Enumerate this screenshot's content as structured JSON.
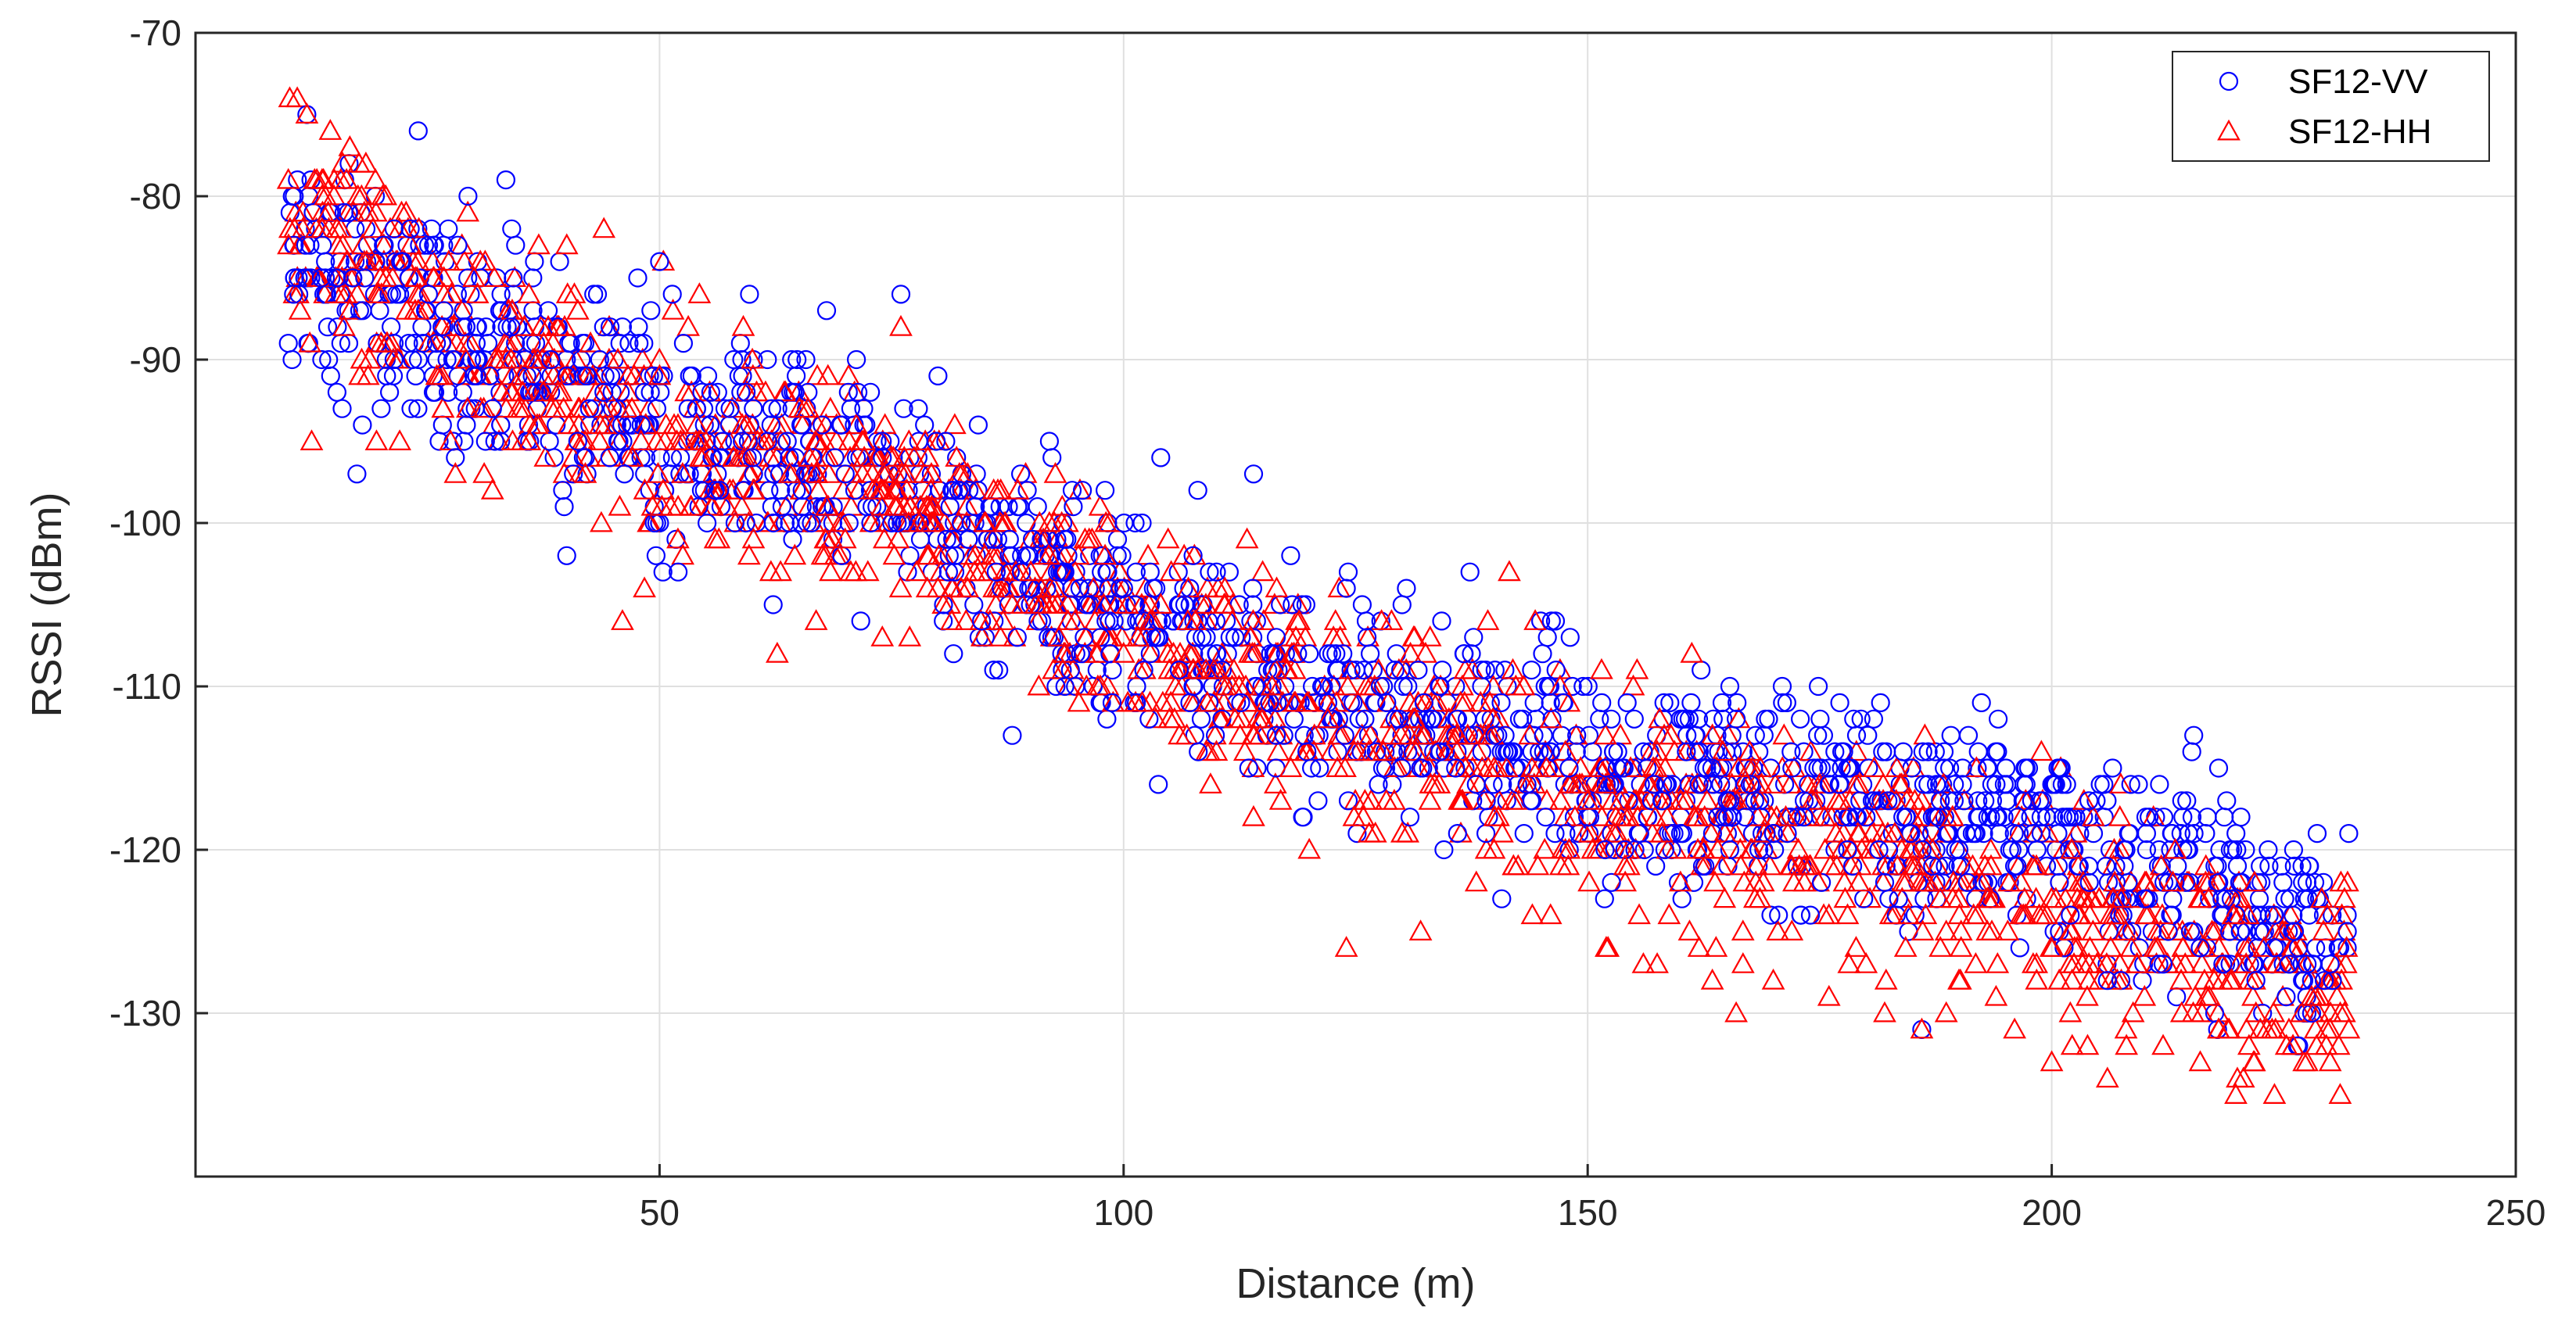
{
  "chart_data": {
    "type": "scatter",
    "xlabel": "Distance (m)",
    "ylabel": "RSSI (dBm)",
    "xlim": [
      0,
      250
    ],
    "ylim": [
      -140,
      -70
    ],
    "xticks": [
      50,
      100,
      150,
      200,
      250
    ],
    "yticks": [
      -70,
      -80,
      -90,
      -100,
      -110,
      -120,
      -130
    ],
    "grid": true,
    "legend_position": "top-right",
    "series": [
      {
        "name": "SF12-VV",
        "marker": "circle",
        "color": "#0000ff",
        "trend": [
          [
            10,
            -83
          ],
          [
            30,
            -89
          ],
          [
            50,
            -94
          ],
          [
            75,
            -98
          ],
          [
            100,
            -106
          ],
          [
            125,
            -111
          ],
          [
            150,
            -115
          ],
          [
            175,
            -117
          ],
          [
            200,
            -119
          ],
          [
            232,
            -126
          ]
        ],
        "x": [
          10,
          12,
          14,
          16,
          18,
          20,
          22,
          24,
          26,
          28,
          30,
          32,
          34,
          36,
          38,
          40,
          42,
          44,
          46,
          48,
          50,
          52,
          54,
          56,
          58,
          60,
          62,
          64,
          66,
          68,
          70,
          72,
          74,
          76,
          78,
          80,
          82,
          84,
          86,
          88,
          90,
          92,
          94,
          96,
          98,
          100,
          102,
          104,
          106,
          108,
          110,
          112,
          114,
          116,
          118,
          120,
          122,
          124,
          126,
          128,
          130,
          132,
          134,
          136,
          138,
          140,
          142,
          144,
          146,
          148,
          150,
          152,
          154,
          156,
          158,
          160,
          162,
          164,
          166,
          168,
          170,
          172,
          174,
          176,
          178,
          180,
          182,
          184,
          186,
          188,
          190,
          192,
          194,
          196,
          198,
          200,
          202,
          204,
          206,
          208,
          210,
          212,
          214,
          216,
          218,
          220,
          222,
          224,
          226,
          228,
          230,
          232
        ],
        "y": [
          -89,
          -75,
          -84,
          -81,
          -87,
          -93,
          -86,
          -76,
          -90,
          -96,
          -91,
          -93,
          -88,
          -95,
          -87,
          -102,
          -96,
          -92,
          -88,
          -94,
          -84,
          -103,
          -93,
          -98,
          -90,
          -96,
          -94,
          -100,
          -92,
          -87,
          -97,
          -93,
          -95,
          -86,
          -100,
          -91,
          -96,
          -99,
          -109,
          -113,
          -104,
          -95,
          -102,
          -105,
          -98,
          -104,
          -100,
          -96,
          -109,
          -98,
          -103,
          -107,
          -97,
          -110,
          -102,
          -108,
          -111,
          -104,
          -112,
          -110,
          -105,
          -115,
          -110,
          -112,
          -116,
          -113,
          -114,
          -117,
          -111,
          -115,
          -118,
          -115,
          -120,
          -114,
          -117,
          -119,
          -116,
          -118,
          -112,
          -117,
          -119,
          -115,
          -124,
          -116,
          -120,
          -118,
          -122,
          -114,
          -131,
          -117,
          -120,
          -118,
          -116,
          -121,
          -119,
          -116,
          -124,
          -117,
          -128,
          -120,
          -123,
          -127,
          -117,
          -126,
          -122,
          -121,
          -128,
          -126,
          -124,
          -130,
          -127,
          -119
        ]
      },
      {
        "name": "SF12-HH",
        "marker": "triangle",
        "color": "#ff0000",
        "trend": [
          [
            10,
            -81
          ],
          [
            30,
            -89
          ],
          [
            50,
            -95
          ],
          [
            75,
            -99
          ],
          [
            100,
            -107
          ],
          [
            125,
            -112
          ],
          [
            150,
            -116
          ],
          [
            175,
            -119
          ],
          [
            200,
            -123
          ],
          [
            232,
            -129
          ]
        ],
        "x": [
          10,
          12,
          14,
          16,
          18,
          20,
          22,
          24,
          26,
          28,
          30,
          32,
          34,
          36,
          38,
          40,
          42,
          44,
          46,
          48,
          50,
          52,
          54,
          56,
          58,
          60,
          62,
          64,
          66,
          68,
          70,
          72,
          74,
          76,
          78,
          80,
          82,
          84,
          86,
          88,
          90,
          92,
          94,
          96,
          98,
          100,
          102,
          104,
          106,
          108,
          110,
          112,
          114,
          116,
          118,
          120,
          122,
          124,
          126,
          128,
          130,
          132,
          134,
          136,
          138,
          140,
          142,
          144,
          146,
          148,
          150,
          152,
          154,
          156,
          158,
          160,
          162,
          164,
          166,
          168,
          170,
          172,
          174,
          176,
          178,
          180,
          182,
          184,
          186,
          188,
          190,
          192,
          194,
          196,
          198,
          200,
          202,
          204,
          206,
          208,
          210,
          212,
          214,
          216,
          218,
          220,
          222,
          224,
          226,
          228,
          230,
          232
        ],
        "y": [
          -79,
          -75,
          -80,
          -88,
          -83,
          -89,
          -95,
          -87,
          -91,
          -97,
          -85,
          -98,
          -90,
          -95,
          -88,
          -83,
          -97,
          -82,
          -106,
          -95,
          -91,
          -99,
          -94,
          -101,
          -96,
          -90,
          -103,
          -97,
          -93,
          -99,
          -101,
          -95,
          -107,
          -88,
          -100,
          -104,
          -96,
          -102,
          -98,
          -105,
          -103,
          -100,
          -106,
          -110,
          -102,
          -108,
          -111,
          -105,
          -113,
          -109,
          -114,
          -112,
          -118,
          -110,
          -115,
          -120,
          -112,
          -126,
          -117,
          -114,
          -119,
          -125,
          -116,
          -113,
          -122,
          -118,
          -121,
          -115,
          -124,
          -120,
          -117,
          -126,
          -121,
          -127,
          -119,
          -122,
          -126,
          -120,
          -130,
          -123,
          -128,
          -125,
          -121,
          -129,
          -124,
          -127,
          -130,
          -122,
          -131,
          -126,
          -128,
          -124,
          -129,
          -131,
          -127,
          -133,
          -130,
          -128,
          -134,
          -131,
          -129,
          -132,
          -130,
          -133,
          -131,
          -134,
          -130,
          -135,
          -132,
          -129,
          -133,
          -131
        ]
      }
    ]
  }
}
